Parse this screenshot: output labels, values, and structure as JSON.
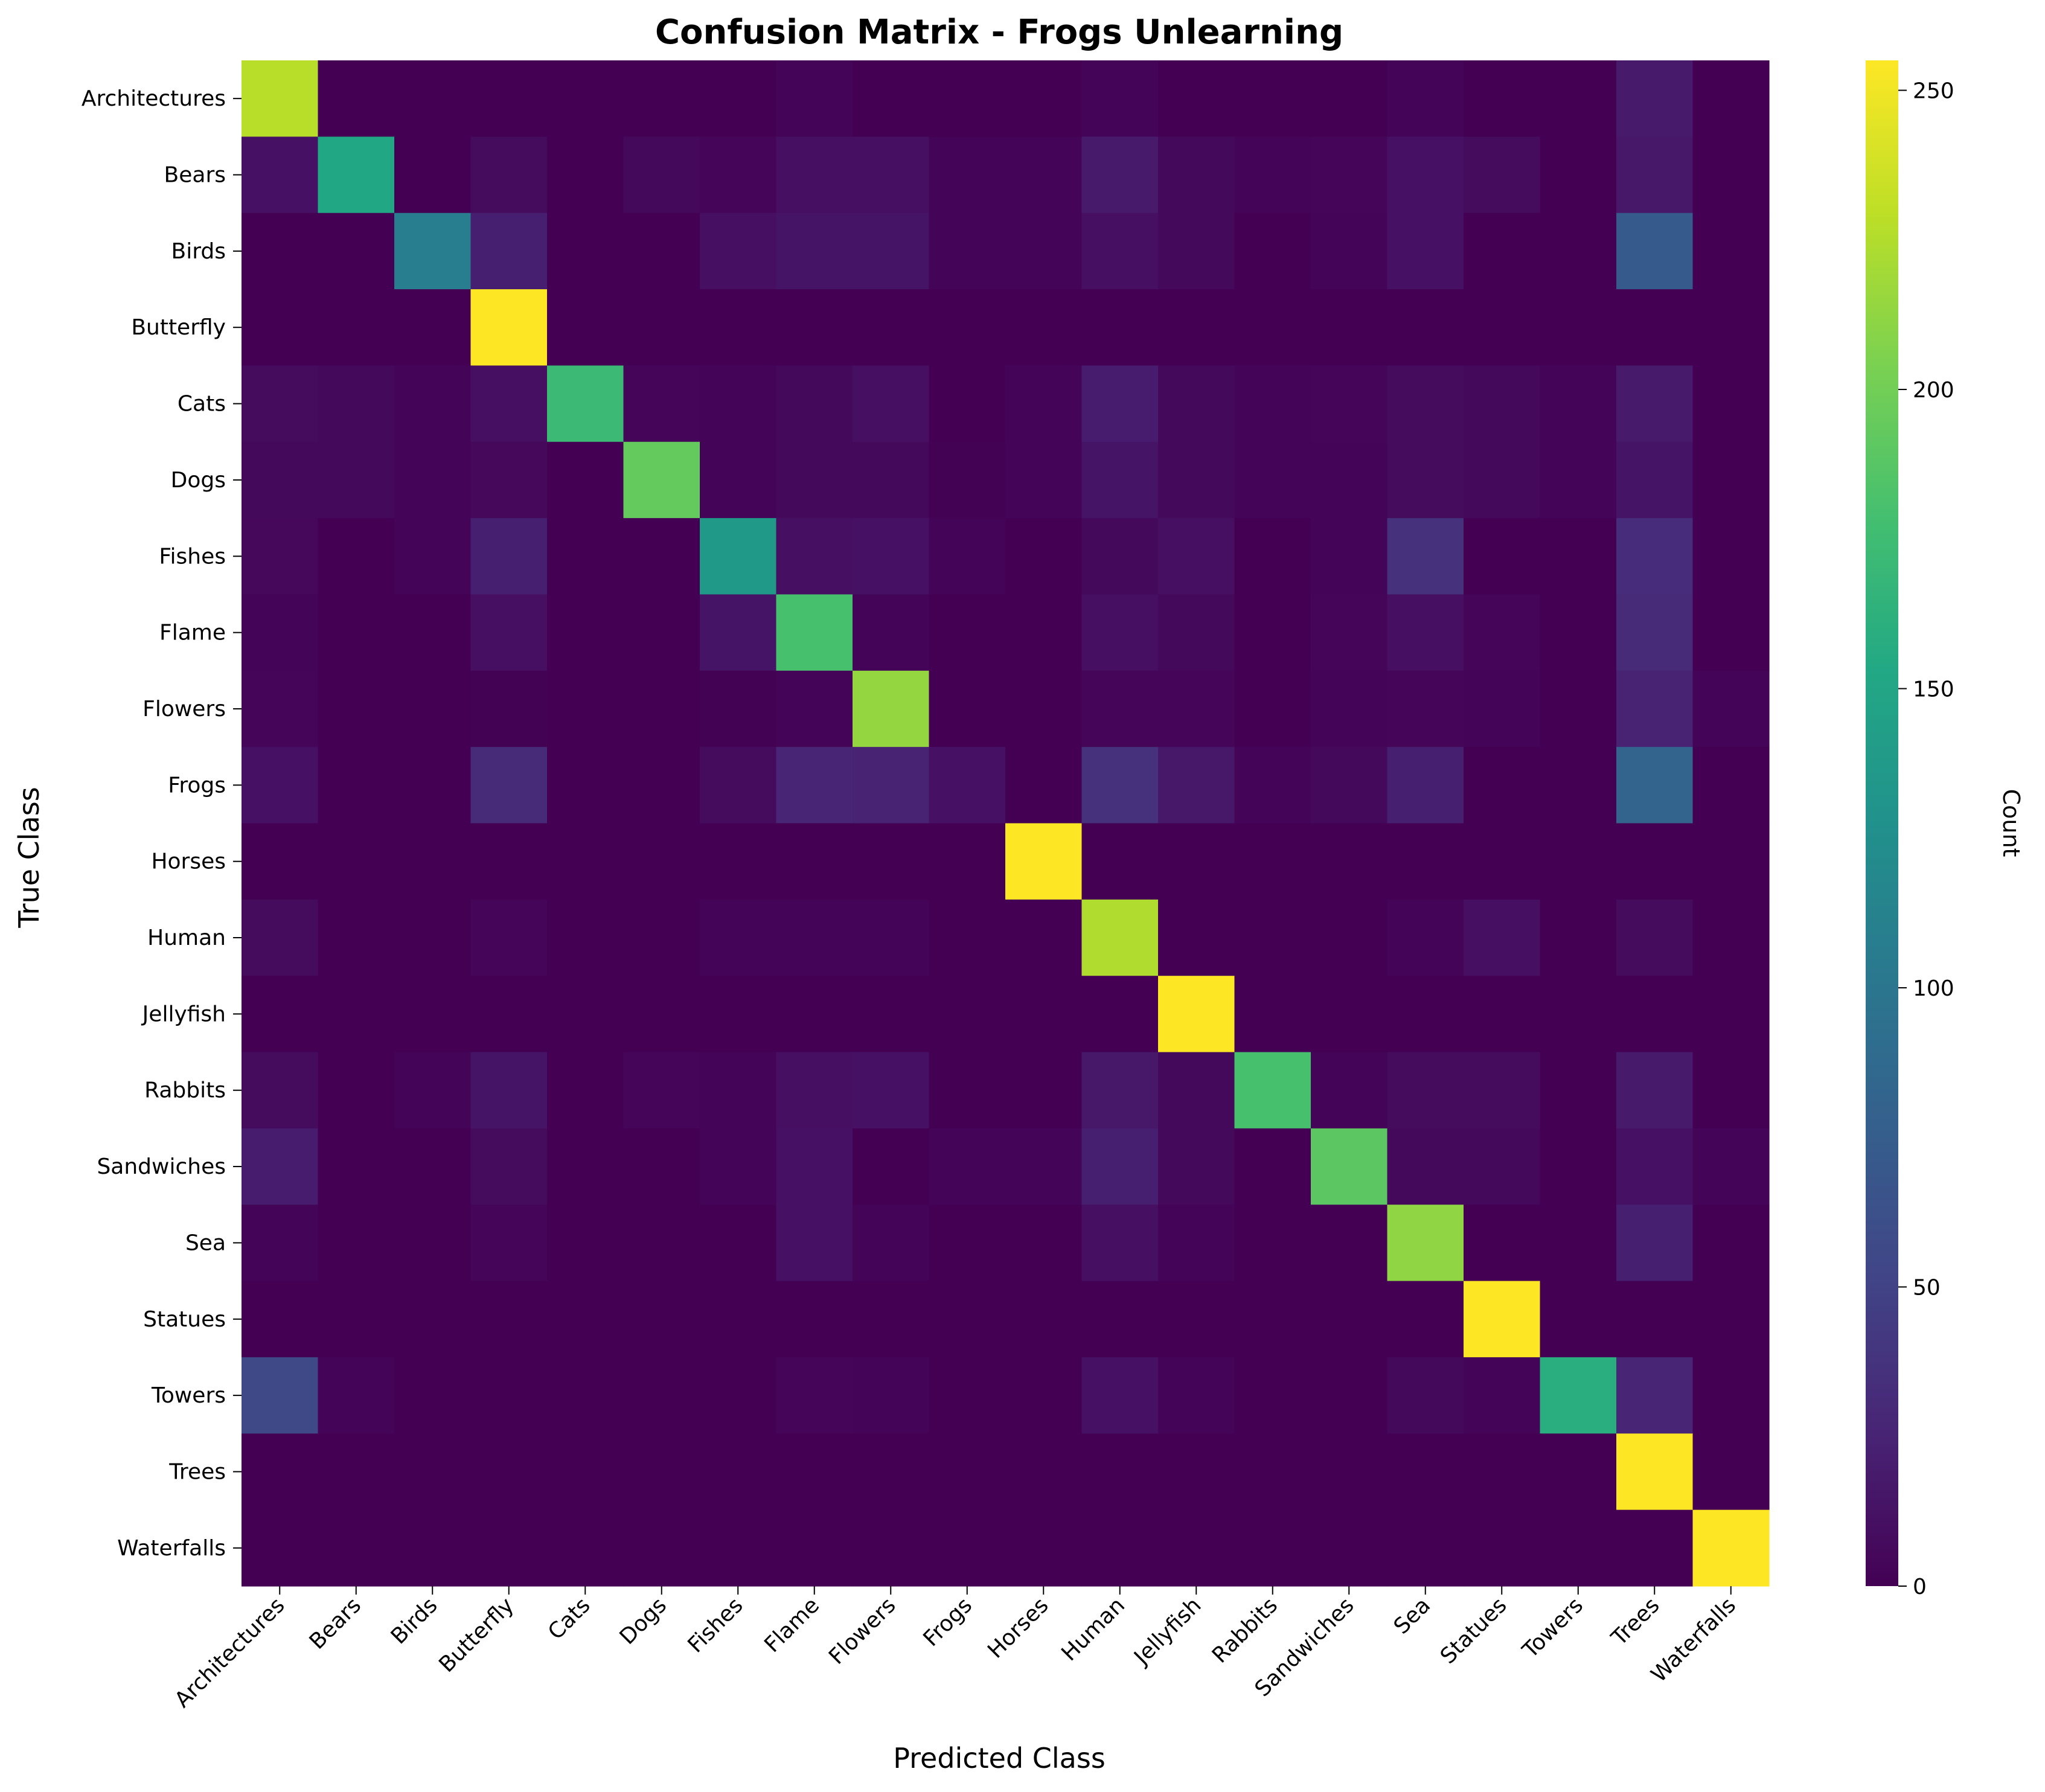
{
  "chart_data": {
    "type": "heatmap",
    "title": "Confusion Matrix - Frogs Unlearning",
    "xlabel": "Predicted Class",
    "ylabel": "True Class",
    "colorbar_label": "Count",
    "colormap": "viridis",
    "vmin": 0,
    "vmax": 255,
    "colorbar_ticks": [
      0,
      50,
      100,
      150,
      200,
      250
    ],
    "classes": [
      "Architectures",
      "Bears",
      "Birds",
      "Butterfly",
      "Cats",
      "Dogs",
      "Fishes",
      "Flame",
      "Flowers",
      "Frogs",
      "Horses",
      "Human",
      "Jellyfish",
      "Rabbits",
      "Sandwiches",
      "Sea",
      "Statues",
      "Towers",
      "Trees",
      "Waterfalls"
    ],
    "matrix": [
      [
        228,
        0,
        0,
        0,
        0,
        0,
        0,
        3,
        0,
        0,
        0,
        3,
        0,
        0,
        0,
        3,
        0,
        0,
        18,
        0
      ],
      [
        12,
        152,
        0,
        8,
        0,
        6,
        4,
        10,
        10,
        2,
        2,
        18,
        6,
        3,
        4,
        12,
        8,
        0,
        16,
        0
      ],
      [
        0,
        0,
        108,
        22,
        0,
        0,
        10,
        14,
        14,
        2,
        2,
        10,
        6,
        0,
        3,
        12,
        0,
        0,
        72,
        0
      ],
      [
        0,
        0,
        0,
        255,
        0,
        0,
        0,
        0,
        0,
        0,
        0,
        0,
        0,
        0,
        0,
        0,
        0,
        0,
        0,
        0
      ],
      [
        8,
        6,
        2,
        10,
        172,
        4,
        2,
        6,
        10,
        0,
        3,
        20,
        6,
        3,
        4,
        8,
        6,
        2,
        18,
        0
      ],
      [
        6,
        6,
        2,
        5,
        0,
        194,
        2,
        6,
        6,
        1,
        2,
        14,
        6,
        3,
        3,
        8,
        6,
        2,
        14,
        0
      ],
      [
        5,
        0,
        2,
        22,
        0,
        0,
        136,
        10,
        12,
        2,
        0,
        6,
        10,
        0,
        2,
        36,
        0,
        0,
        32,
        0
      ],
      [
        3,
        0,
        0,
        10,
        0,
        0,
        14,
        180,
        2,
        0,
        0,
        10,
        6,
        0,
        4,
        10,
        4,
        0,
        30,
        0
      ],
      [
        4,
        0,
        0,
        1,
        0,
        0,
        1,
        2,
        214,
        0,
        0,
        4,
        4,
        0,
        2,
        4,
        2,
        0,
        24,
        2
      ],
      [
        12,
        0,
        0,
        30,
        0,
        0,
        8,
        26,
        24,
        12,
        0,
        36,
        16,
        2,
        6,
        22,
        0,
        0,
        82,
        0
      ],
      [
        0,
        0,
        0,
        0,
        0,
        0,
        0,
        0,
        0,
        0,
        255,
        0,
        0,
        0,
        0,
        0,
        0,
        0,
        0,
        0
      ],
      [
        8,
        0,
        0,
        4,
        0,
        0,
        2,
        3,
        2,
        0,
        0,
        224,
        0,
        0,
        0,
        2,
        10,
        0,
        8,
        0
      ],
      [
        0,
        0,
        0,
        0,
        0,
        0,
        0,
        0,
        0,
        0,
        0,
        0,
        255,
        0,
        0,
        0,
        0,
        0,
        0,
        0
      ],
      [
        8,
        0,
        2,
        14,
        0,
        4,
        2,
        10,
        12,
        0,
        0,
        16,
        6,
        180,
        2,
        8,
        8,
        0,
        18,
        0
      ],
      [
        20,
        0,
        0,
        8,
        0,
        0,
        2,
        12,
        0,
        2,
        2,
        22,
        6,
        0,
        190,
        6,
        6,
        0,
        12,
        2
      ],
      [
        2,
        0,
        0,
        4,
        0,
        0,
        0,
        12,
        2,
        0,
        0,
        10,
        2,
        0,
        0,
        212,
        0,
        0,
        22,
        0
      ],
      [
        0,
        0,
        0,
        0,
        0,
        0,
        0,
        0,
        0,
        0,
        0,
        0,
        0,
        0,
        0,
        0,
        255,
        0,
        0,
        0
      ],
      [
        56,
        2,
        0,
        0,
        0,
        0,
        0,
        4,
        2,
        0,
        0,
        12,
        2,
        0,
        0,
        6,
        2,
        160,
        26,
        0
      ],
      [
        0,
        0,
        0,
        0,
        0,
        0,
        0,
        0,
        0,
        0,
        0,
        0,
        0,
        0,
        0,
        0,
        0,
        0,
        255,
        0
      ],
      [
        0,
        0,
        0,
        0,
        0,
        0,
        0,
        0,
        0,
        0,
        0,
        0,
        0,
        0,
        0,
        0,
        0,
        0,
        0,
        255
      ]
    ]
  }
}
